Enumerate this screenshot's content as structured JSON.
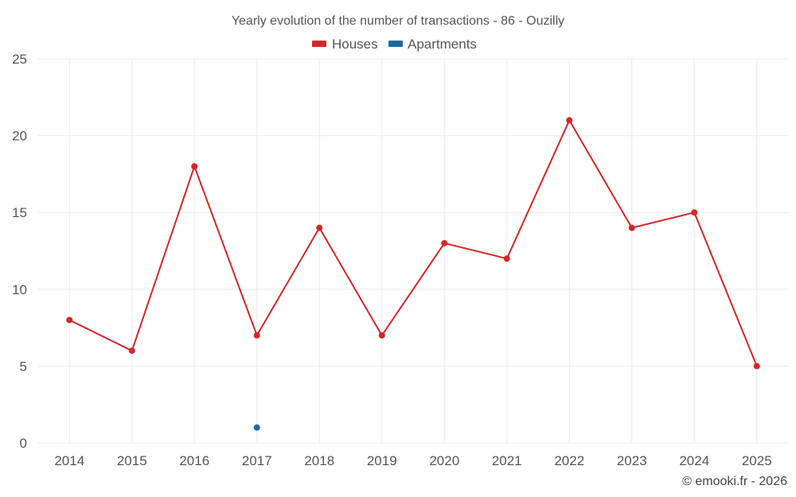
{
  "chart_data": {
    "type": "line",
    "title": "Yearly evolution of the number of transactions - 86 - Ouzilly",
    "categories": [
      "2014",
      "2015",
      "2016",
      "2017",
      "2018",
      "2019",
      "2020",
      "2021",
      "2022",
      "2023",
      "2024",
      "2025"
    ],
    "series": [
      {
        "name": "Houses",
        "color": "#d62728",
        "values": [
          8,
          6,
          18,
          7,
          14,
          7,
          13,
          12,
          21,
          14,
          15,
          5
        ]
      },
      {
        "name": "Apartments",
        "color": "#1f6b9c",
        "values": [
          null,
          null,
          null,
          1,
          null,
          null,
          null,
          null,
          null,
          null,
          null,
          null
        ]
      }
    ],
    "ylim": [
      0,
      25
    ],
    "yticks": [
      0,
      5,
      10,
      15,
      20,
      25
    ],
    "xlabel": "",
    "ylabel": "",
    "legend_position": "top-center",
    "grid": true
  },
  "credit": "© emooki.fr - 2026"
}
